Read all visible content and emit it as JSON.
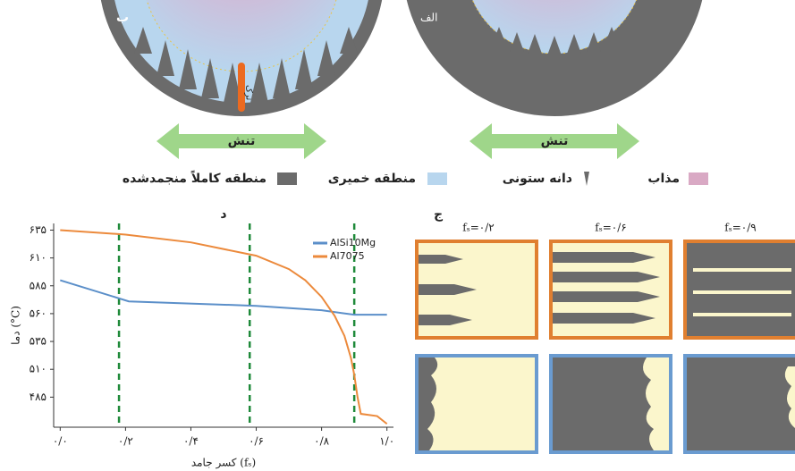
{
  "figure": {
    "top": {
      "label_left": "ب",
      "label_right": "الف",
      "stress_left": "تنش",
      "stress_right": "تنش",
      "crack": "ترک"
    },
    "legend": [
      "مذاب",
      "دانه ستونی",
      "منطقه خمیری",
      "منطقه کاملاً منجمدشده"
    ],
    "panel_c": {
      "label": "ج",
      "columns": [
        "fₛ=۰/۲",
        "fₛ=۰/۶",
        "fₛ=۰/۹"
      ]
    }
  },
  "chart_data": {
    "type": "line",
    "panel_label": "د",
    "x_label": "کسر جامد (fₛ)",
    "y_label": "دما (°C)",
    "xlim": [
      -0.02,
      1.02
    ],
    "ylim": [
      458,
      641
    ],
    "xticks": [
      {
        "value": 0,
        "label": "۰/۰"
      },
      {
        "value": 0.2,
        "label": "۰/۲"
      },
      {
        "value": 0.4,
        "label": "۰/۴"
      },
      {
        "value": 0.6,
        "label": "۰/۶"
      },
      {
        "value": 0.8,
        "label": "۰/۸"
      },
      {
        "value": 1,
        "label": "۱/۰"
      }
    ],
    "yticks": [
      {
        "value": 485,
        "label": "۴۸۵"
      },
      {
        "value": 510,
        "label": "۵۱۰"
      },
      {
        "value": 535,
        "label": "۵۳۵"
      },
      {
        "value": 560,
        "label": "۵۶۰"
      },
      {
        "value": 585,
        "label": "۵۸۵"
      },
      {
        "value": 610,
        "label": "۶۱۰"
      },
      {
        "value": 635,
        "label": "۶۳۵"
      }
    ],
    "vlines": [
      0.18,
      0.58,
      0.9
    ],
    "vline_color": "#1f8a3a",
    "legend": "upper right",
    "series": [
      {
        "name": "AlSi10Mg",
        "color": "#5b8fc9",
        "x": [
          0,
          0.21,
          0.6,
          0.8,
          0.9,
          1.0
        ],
        "values": [
          590,
          571,
          567,
          563,
          559,
          559
        ]
      },
      {
        "name": "Al7075",
        "color": "#ec8a3c",
        "x": [
          0,
          0.2,
          0.4,
          0.6,
          0.7,
          0.75,
          0.8,
          0.84,
          0.87,
          0.89,
          0.9,
          0.91,
          0.92,
          0.97,
          1.0
        ],
        "values": [
          635,
          631,
          624,
          612,
          600,
          590,
          575,
          558,
          540,
          520,
          505,
          485,
          470,
          468,
          461
        ]
      }
    ]
  }
}
